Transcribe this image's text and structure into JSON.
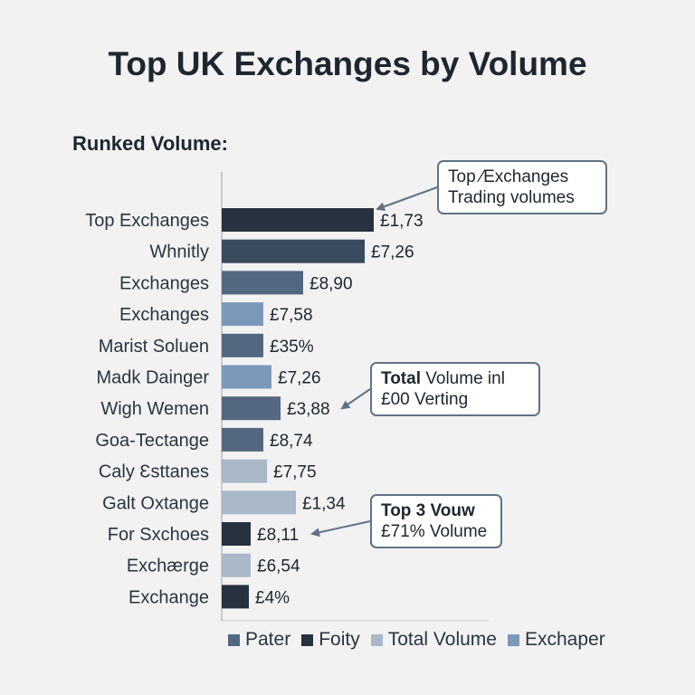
{
  "chart_data": {
    "type": "bar",
    "orientation": "horizontal",
    "title": "Top UK Exchanges by Volume",
    "subtitle": "Runked Volume:",
    "categories": [
      "Top Exchanges",
      "Whnitly",
      "Exchanges",
      "Exchanges",
      "Marist Soluen",
      "Madk Dainger",
      "Wigh Wemen",
      "Goa-Tectange",
      "Caly Ɛsttanes",
      "Galt Oxtange",
      "For Sxchoes",
      "Exchærge",
      "Exchange"
    ],
    "values": [
      168,
      158,
      90,
      46,
      46,
      55,
      65,
      46,
      50,
      82,
      32,
      32,
      30
    ],
    "value_labels": [
      "£1,73",
      "£7,26",
      "£8,90",
      "£7,58",
      "£35%",
      "£7,26",
      "£3,88",
      "£8,74",
      "£7,75",
      "£1,34",
      "£8,11",
      "£6,54",
      "£4%"
    ],
    "colors": [
      "#27313f",
      "#3a4a5f",
      "#546781",
      "#7b98bb",
      "#546781",
      "#7b98bb",
      "#546781",
      "#546781",
      "#a8b8c8",
      "#a8b8c8",
      "#27313f",
      "#a8b8c8",
      "#27313f"
    ],
    "xlim": [
      0,
      170
    ],
    "grid": false,
    "legend": {
      "placement": "bottom",
      "items": [
        {
          "name": "Pater",
          "color": "#546781"
        },
        {
          "name": "Foity",
          "color": "#27313f"
        },
        {
          "name": "Total Volume",
          "color": "#a8b8c8"
        },
        {
          "name": "Exchaper",
          "color": "#7b98bb"
        }
      ]
    },
    "annotations": [
      {
        "bold": "",
        "line1": "Top ⁄Exchanges",
        "line2": "Trading volumes",
        "target_index": 0
      },
      {
        "bold": "Total",
        "line1": " Volume inl",
        "line2": "£00 Verting",
        "target_index": 6
      },
      {
        "bold": "Top 3 Vouw",
        "line1": "",
        "line2": "£71% Volume",
        "target_index": 10
      }
    ]
  }
}
